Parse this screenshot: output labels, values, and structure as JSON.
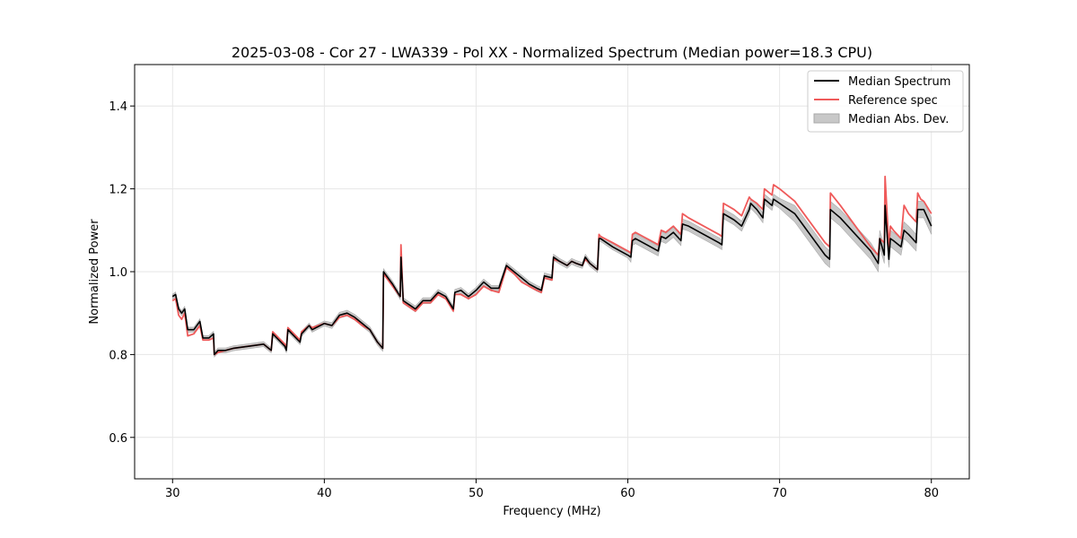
{
  "chart_data": {
    "type": "line",
    "title": "2025-03-08 - Cor 27 - LWA339 - Pol XX - Normalized Spectrum (Median power=18.3 CPU)",
    "xlabel": "Frequency (MHz)",
    "ylabel": "Normalized Power",
    "xlim": [
      27.5,
      82.5
    ],
    "ylim": [
      0.5,
      1.5
    ],
    "xticks": [
      30,
      40,
      50,
      60,
      70,
      80
    ],
    "yticks": [
      0.6,
      0.8,
      1.0,
      1.2,
      1.4
    ],
    "xtick_labels": [
      "30",
      "40",
      "50",
      "60",
      "70",
      "80"
    ],
    "ytick_labels": [
      "0.6",
      "0.8",
      "1.0",
      "1.2",
      "1.4"
    ],
    "grid": true,
    "legend_position": "top-right",
    "legend": [
      "Median Spectrum",
      "Reference spec",
      "Median Abs. Dev."
    ],
    "colors": {
      "median": "#000000",
      "reference": "#ef5a5a",
      "mad": "#c8c8c8",
      "mad_edge": "#a8a8a8",
      "grid": "#e6e6e6"
    },
    "series": [
      {
        "name": "Median Spectrum",
        "x": [
          30.0,
          30.2,
          30.4,
          30.6,
          30.8,
          31.0,
          31.4,
          31.8,
          32.0,
          32.4,
          32.7,
          32.75,
          33.0,
          33.5,
          34.0,
          35.0,
          36.0,
          36.5,
          36.6,
          37.4,
          37.5,
          37.6,
          38.4,
          38.5,
          39.0,
          39.2,
          40.0,
          40.5,
          41.0,
          41.5,
          42.0,
          42.5,
          43.0,
          43.5,
          43.85,
          43.9,
          44.5,
          45.0,
          45.05,
          45.2,
          45.6,
          46.0,
          46.5,
          47.0,
          47.5,
          48.0,
          48.5,
          48.6,
          49.0,
          49.5,
          50.0,
          50.5,
          51.0,
          51.5,
          52.0,
          52.5,
          53.0,
          53.5,
          54.0,
          54.3,
          54.5,
          55.0,
          55.1,
          55.5,
          56.0,
          56.3,
          56.6,
          57.0,
          57.2,
          57.5,
          58.0,
          58.1,
          58.2,
          59.0,
          59.5,
          60.0,
          60.2,
          60.3,
          60.5,
          61.0,
          61.5,
          62.0,
          62.2,
          62.5,
          63.0,
          63.5,
          63.6,
          64.0,
          64.5,
          65.0,
          65.5,
          66.0,
          66.2,
          66.3,
          67.0,
          67.5,
          68.0,
          68.1,
          68.5,
          68.9,
          69.0,
          69.5,
          69.6,
          70.0,
          71.0,
          72.0,
          73.0,
          73.3,
          73.35,
          74.0,
          75.0,
          76.0,
          76.5,
          76.6,
          76.9,
          76.95,
          77.2,
          77.3,
          77.5,
          78.0,
          78.2,
          78.5,
          79.0,
          79.1,
          79.3,
          79.5,
          80.0
        ],
        "values": [
          0.94,
          0.945,
          0.91,
          0.9,
          0.91,
          0.86,
          0.86,
          0.88,
          0.84,
          0.84,
          0.85,
          0.8,
          0.81,
          0.81,
          0.815,
          0.82,
          0.825,
          0.81,
          0.85,
          0.82,
          0.81,
          0.86,
          0.83,
          0.85,
          0.87,
          0.86,
          0.875,
          0.87,
          0.895,
          0.9,
          0.89,
          0.875,
          0.86,
          0.83,
          0.815,
          1.0,
          0.97,
          0.94,
          1.035,
          0.93,
          0.92,
          0.91,
          0.93,
          0.93,
          0.95,
          0.94,
          0.91,
          0.95,
          0.955,
          0.94,
          0.955,
          0.975,
          0.96,
          0.96,
          1.015,
          1.0,
          0.985,
          0.97,
          0.96,
          0.955,
          0.99,
          0.985,
          1.035,
          1.025,
          1.015,
          1.025,
          1.02,
          1.015,
          1.035,
          1.02,
          1.005,
          1.08,
          1.08,
          1.06,
          1.05,
          1.04,
          1.035,
          1.075,
          1.08,
          1.07,
          1.06,
          1.05,
          1.085,
          1.08,
          1.095,
          1.075,
          1.115,
          1.11,
          1.1,
          1.09,
          1.08,
          1.07,
          1.065,
          1.14,
          1.125,
          1.11,
          1.15,
          1.165,
          1.15,
          1.13,
          1.175,
          1.16,
          1.175,
          1.165,
          1.14,
          1.09,
          1.04,
          1.03,
          1.15,
          1.13,
          1.09,
          1.05,
          1.02,
          1.08,
          1.04,
          1.16,
          1.03,
          1.08,
          1.075,
          1.06,
          1.1,
          1.09,
          1.07,
          1.15,
          1.15,
          1.15,
          1.11
        ]
      },
      {
        "name": "Reference spec",
        "x": [
          30.0,
          30.2,
          30.4,
          30.6,
          30.8,
          31.0,
          31.4,
          31.8,
          32.0,
          32.4,
          32.7,
          32.75,
          33.0,
          33.5,
          34.0,
          35.0,
          36.0,
          36.5,
          36.6,
          37.4,
          37.5,
          37.6,
          38.4,
          38.5,
          39.0,
          39.2,
          40.0,
          40.5,
          41.0,
          41.5,
          42.0,
          42.5,
          43.0,
          43.5,
          43.85,
          43.9,
          44.5,
          45.0,
          45.05,
          45.2,
          45.6,
          46.0,
          46.5,
          47.0,
          47.5,
          48.0,
          48.5,
          48.6,
          49.0,
          49.5,
          50.0,
          50.5,
          51.0,
          51.5,
          52.0,
          52.5,
          53.0,
          53.5,
          54.0,
          54.3,
          54.5,
          55.0,
          55.1,
          55.5,
          56.0,
          56.3,
          56.6,
          57.0,
          57.2,
          57.5,
          58.0,
          58.1,
          58.2,
          59.0,
          59.5,
          60.0,
          60.2,
          60.3,
          60.5,
          61.0,
          61.5,
          62.0,
          62.2,
          62.5,
          63.0,
          63.5,
          63.6,
          64.0,
          64.5,
          65.0,
          65.5,
          66.0,
          66.2,
          66.3,
          67.0,
          67.5,
          68.0,
          68.1,
          68.5,
          68.9,
          69.0,
          69.5,
          69.6,
          70.0,
          71.0,
          72.0,
          73.0,
          73.3,
          73.35,
          74.0,
          75.0,
          76.0,
          76.5,
          76.6,
          76.9,
          76.95,
          77.2,
          77.3,
          77.5,
          78.0,
          78.2,
          78.5,
          79.0,
          79.1,
          79.3,
          79.5,
          80.0
        ],
        "values": [
          0.93,
          0.935,
          0.895,
          0.885,
          0.9,
          0.845,
          0.85,
          0.87,
          0.835,
          0.835,
          0.84,
          0.8,
          0.805,
          0.81,
          0.815,
          0.82,
          0.825,
          0.81,
          0.855,
          0.825,
          0.815,
          0.865,
          0.835,
          0.855,
          0.87,
          0.865,
          0.875,
          0.87,
          0.89,
          0.895,
          0.885,
          0.87,
          0.86,
          0.83,
          0.815,
          0.995,
          0.965,
          0.94,
          1.065,
          0.925,
          0.915,
          0.905,
          0.925,
          0.925,
          0.945,
          0.935,
          0.905,
          0.945,
          0.945,
          0.935,
          0.945,
          0.965,
          0.955,
          0.95,
          1.01,
          0.995,
          0.975,
          0.965,
          0.955,
          0.95,
          0.985,
          0.98,
          1.03,
          1.025,
          1.015,
          1.025,
          1.02,
          1.015,
          1.03,
          1.02,
          1.005,
          1.09,
          1.085,
          1.07,
          1.06,
          1.05,
          1.045,
          1.09,
          1.095,
          1.085,
          1.075,
          1.065,
          1.1,
          1.095,
          1.11,
          1.09,
          1.14,
          1.13,
          1.12,
          1.11,
          1.1,
          1.09,
          1.085,
          1.165,
          1.15,
          1.135,
          1.18,
          1.175,
          1.165,
          1.15,
          1.2,
          1.185,
          1.21,
          1.2,
          1.17,
          1.12,
          1.07,
          1.06,
          1.19,
          1.16,
          1.11,
          1.06,
          1.04,
          1.08,
          1.07,
          1.23,
          1.06,
          1.11,
          1.1,
          1.08,
          1.16,
          1.14,
          1.12,
          1.19,
          1.175,
          1.17,
          1.14
        ]
      }
    ],
    "mad_halfwidth": [
      {
        "from_mhz": 30,
        "to_mhz": 40,
        "value": 0.006
      },
      {
        "from_mhz": 40,
        "to_mhz": 60,
        "value": 0.007
      },
      {
        "from_mhz": 60,
        "to_mhz": 70,
        "value": 0.012
      },
      {
        "from_mhz": 70,
        "to_mhz": 80,
        "value": 0.02
      }
    ]
  }
}
